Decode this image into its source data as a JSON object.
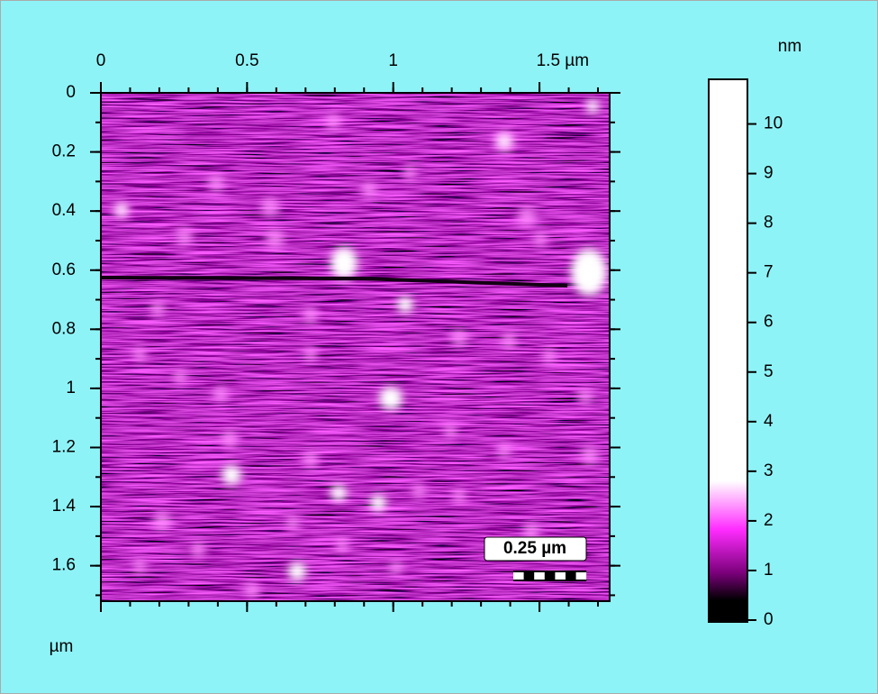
{
  "chart_data": {
    "type": "image",
    "xticks": [
      0,
      0.5,
      1,
      {
        "value": 1.5,
        "label": "1.5 µm"
      }
    ],
    "xlim": [
      0,
      1.74
    ],
    "yticks": [
      0,
      0.2,
      0.4,
      0.6,
      0.8,
      1,
      1.2,
      1.4,
      1.6
    ],
    "ylim": [
      0,
      1.72
    ],
    "ylabel": "µm",
    "colorbar": {
      "label": "nm",
      "ticks": [
        0,
        1,
        2,
        3,
        4,
        5,
        6,
        7,
        8,
        9,
        10
      ],
      "lim": [
        0,
        10.9
      ],
      "colors": [
        "#000000",
        "#7a007a",
        "#ff2cff",
        "#ffffff"
      ]
    },
    "scale_bar": {
      "label": "0.25 µm",
      "length": 0.25
    },
    "background": "#8ef3f7"
  }
}
